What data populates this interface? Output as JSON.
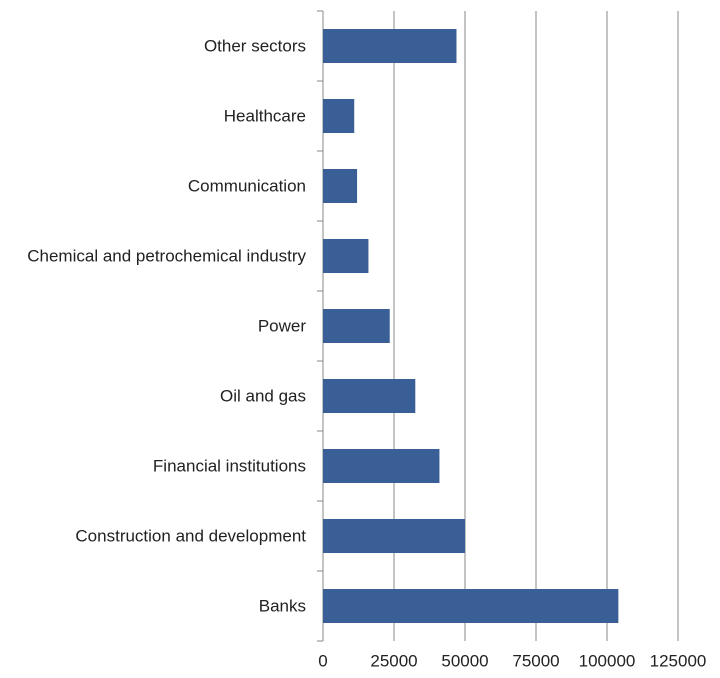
{
  "chart_data": {
    "type": "barh",
    "categories": [
      "Other sectors",
      "Healthcare",
      "Communication",
      "Chemical and petrochemical industry",
      "Power",
      "Oil and gas",
      "Financial institutions",
      "Construction and development",
      "Banks"
    ],
    "values": [
      47000,
      11000,
      12000,
      16000,
      23500,
      32500,
      41000,
      50000,
      104000
    ],
    "color": "#3a5f96",
    "xlim": [
      0,
      125000
    ],
    "xticks": [
      0,
      25000,
      50000,
      75000,
      100000,
      125000
    ],
    "grid": true
  }
}
